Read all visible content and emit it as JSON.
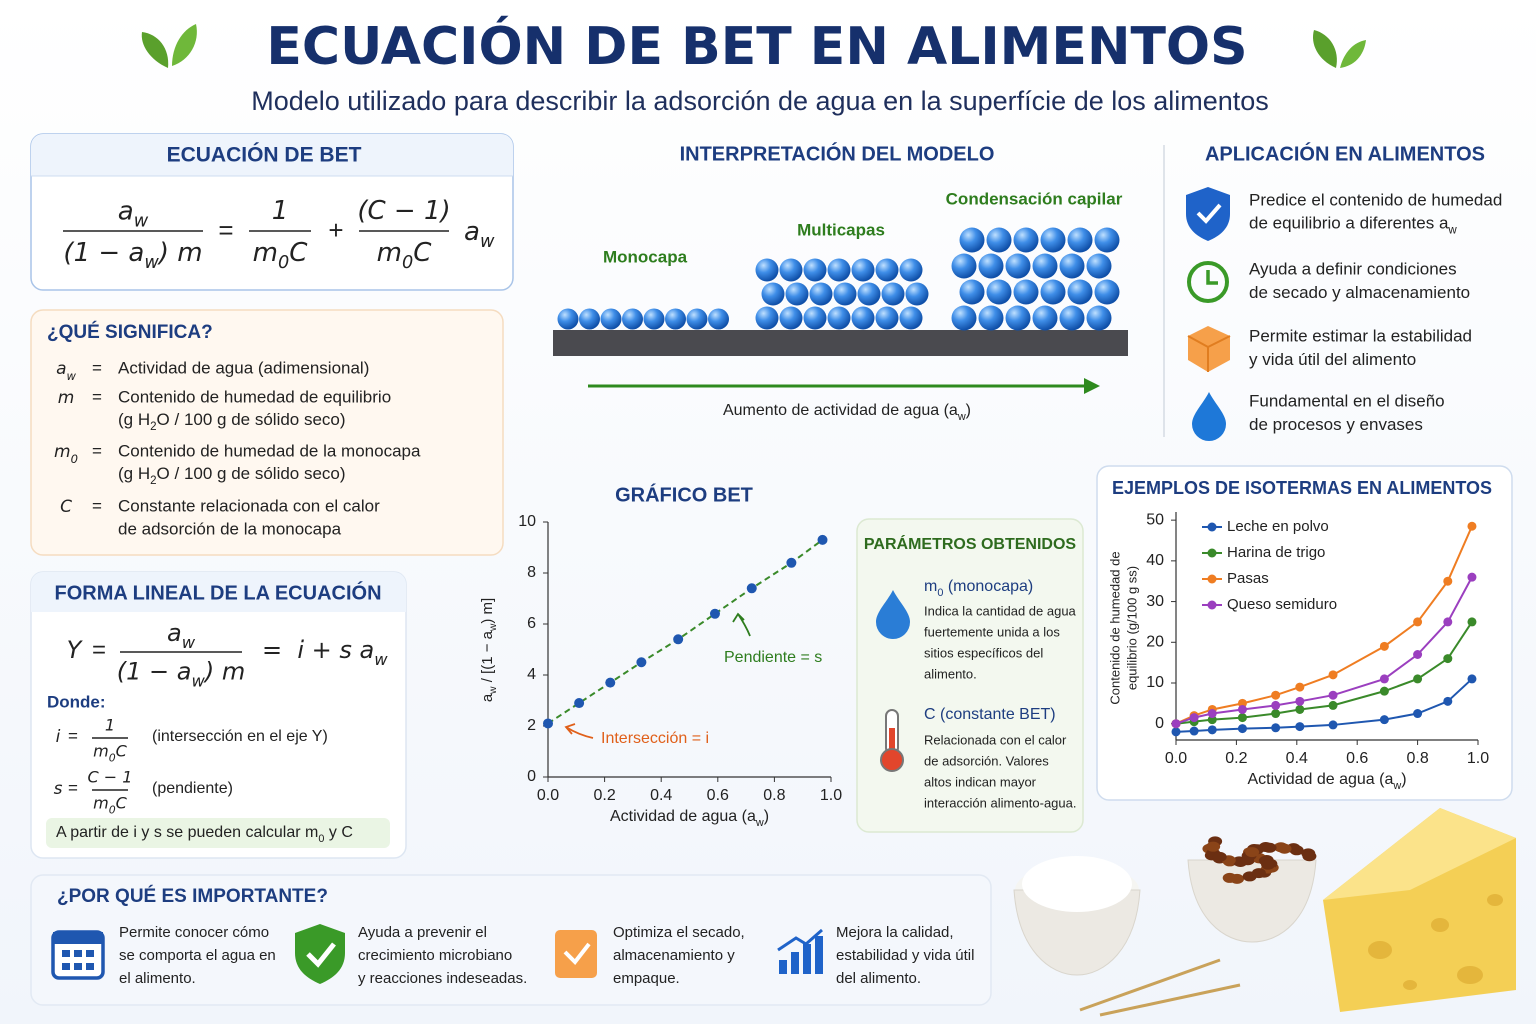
{
  "header": {
    "title": "ECUACIÓN DE BET EN ALIMENTOS",
    "subtitle": "Modelo utilizado para describir la adsorción de agua en la superfície de los alimentos"
  },
  "equation": {
    "title": "ECUACIÓN DE BET",
    "lhs_num": [
      "a",
      "w"
    ],
    "lhs_den": [
      "(1 − a",
      "w",
      ") m"
    ],
    "equals": "=",
    "t1_num": "1",
    "t1_den": [
      "m",
      "0",
      "C"
    ],
    "plus": "+",
    "t2_num": "(C − 1)",
    "t2_den": [
      "m",
      "0",
      "C"
    ],
    "factor": [
      "a",
      "w"
    ]
  },
  "meaning": {
    "title": "¿QUÉ SIGNIFICA?",
    "items": [
      {
        "symbol": [
          "a",
          "w"
        ],
        "equals": "=",
        "lines": [
          "Actividad de agua (adimensional)"
        ]
      },
      {
        "symbol": "m",
        "equals": "=",
        "lines": [
          "Contenido de humedad de equilibrio",
          [
            "(g H",
            "2",
            "O / 100 g de sólido seco)"
          ]
        ]
      },
      {
        "symbol": [
          "m",
          "0"
        ],
        "equals": "=",
        "lines": [
          "Contenido de humedad de la monocapa",
          [
            "(g H",
            "2",
            "O / 100 g de sólido seco)"
          ]
        ]
      },
      {
        "symbol": "C",
        "equals": "=",
        "lines": [
          "Constante relacionada con el calor",
          "de adsorción de la monocapa"
        ]
      }
    ]
  },
  "linear": {
    "title": "FORMA LINEAL DE LA ECUACIÓN",
    "lhs": "Y",
    "equals": "=",
    "num": [
      "a",
      "w"
    ],
    "den": [
      "(1 − a",
      "w",
      ") m"
    ],
    "rhs": [
      "=  i + s a",
      "w"
    ],
    "where": "Donde:",
    "defs": [
      {
        "symbol": "i",
        "equals": "=",
        "num": "1",
        "den": [
          "m",
          "0",
          "C"
        ],
        "note": "(intersección en el eje Y)"
      },
      {
        "symbol": "s",
        "equals": "=",
        "num": "C − 1",
        "den": [
          "m",
          "0",
          "C"
        ],
        "note": "(pendiente)"
      }
    ],
    "footer": [
      "A partir de i y s se pueden calcular m",
      "0",
      " y C"
    ]
  },
  "model": {
    "title": "INTERPRETACIÓN DEL MODELO",
    "stages": [
      "Monocapa",
      "Multicapas",
      "Condensación capilar"
    ],
    "axis": [
      "Aumento de actividad de agua (a",
      "w",
      ")"
    ]
  },
  "applications": {
    "title": "APLICACIÓN EN ALIMENTOS",
    "items": [
      [
        "Predice el contenido de humedad",
        [
          "de equilibrio a diferentes a",
          "w"
        ]
      ],
      [
        "Ayuda a definir condiciones",
        "de secado y almacenamiento"
      ],
      [
        "Permite estimar la estabilidad",
        "y vida útil del alimento"
      ],
      [
        "Fundamental en el diseño",
        "de procesos y envases"
      ]
    ]
  },
  "parameters": {
    "title": "PARÁMETROS OBTENIDOS",
    "items": [
      {
        "title": [
          "m",
          "0",
          " (monocapa)"
        ],
        "lines": [
          "Indica la cantidad de agua",
          "fuertemente unida a los",
          "sitios específicos del",
          "alimento."
        ]
      },
      {
        "title": "C (constante BET)",
        "lines": [
          "Relacionada con el calor",
          "de adsorción. Valores",
          "altos indican mayor",
          "interacción alimento-agua."
        ]
      }
    ]
  },
  "importance": {
    "title": "¿POR QUÉ ES IMPORTANTE?",
    "items": [
      [
        "Permite conocer cómo",
        "se comporta el agua en",
        "el alimento."
      ],
      [
        "Ayuda a prevenir el",
        "crecimiento microbiano",
        "y reacciones indeseadas."
      ],
      [
        "Optimiza el secado,",
        "almacenamiento y",
        "empaque."
      ],
      [
        "Mejora la calidad,",
        "estabilidad y vida útil",
        "del alimento."
      ]
    ]
  },
  "chart_data": [
    {
      "type": "line",
      "title": "GRÁFICO BET",
      "x_label": [
        "Actividad de agua (a",
        "w",
        ")"
      ],
      "y_label": [
        "a",
        "w",
        " / [(1 − a",
        "w",
        ") m]"
      ],
      "x": [
        0,
        0.11,
        0.22,
        0.33,
        0.46,
        0.59,
        0.72,
        0.86,
        0.97
      ],
      "values": [
        2.1,
        2.9,
        3.7,
        4.5,
        5.4,
        6.4,
        7.4,
        8.4,
        9.3
      ],
      "color": "#1f57b0",
      "line_color": "#3a8a2a",
      "line_style": "dashed",
      "grid": false,
      "xlim": [
        0,
        1
      ],
      "xticks": [
        {
          "value": 0,
          "label": "0.0"
        },
        {
          "value": 0.2,
          "label": "0.2"
        },
        {
          "value": 0.4,
          "label": "0.4"
        },
        {
          "value": 0.6,
          "label": "0.6"
        },
        {
          "value": 0.8,
          "label": "0.8"
        },
        {
          "value": 1,
          "label": "1.0"
        }
      ],
      "ylim": [
        0,
        10
      ],
      "yticks": [
        0,
        2,
        4,
        6,
        8,
        10
      ],
      "annotations": [
        "Pendiente = s",
        "Intersección = i"
      ]
    },
    {
      "type": "line",
      "title": "EJEMPLOS DE ISOTERMAS EN ALIMENTOS",
      "x_label": [
        "Actividad de agua (a",
        "w",
        ")"
      ],
      "y_label": [
        "Contenido de humedad de",
        "equilibrio (g/100 g ss)"
      ],
      "x": [
        0,
        0.06,
        0.12,
        0.22,
        0.33,
        0.41,
        0.52,
        0.69,
        0.8,
        0.9,
        0.98
      ],
      "series": [
        {
          "name": "Leche en polvo",
          "color": "#1f57b0",
          "values": [
            -2,
            -1.8,
            -1.5,
            -1.2,
            -1,
            -0.7,
            -0.3,
            1,
            2.5,
            5.5,
            11
          ]
        },
        {
          "name": "Harina de trigo",
          "color": "#3a8a2a",
          "values": [
            0,
            0.5,
            1,
            1.5,
            2.5,
            3.5,
            4.5,
            8,
            11,
            16,
            25
          ]
        },
        {
          "name": "Pasas",
          "color": "#ef7d22",
          "values": [
            0,
            2,
            3.5,
            5,
            7,
            9,
            12,
            19,
            25,
            35,
            48.5
          ]
        },
        {
          "name": "Queso semiduro",
          "color": "#9b3fbf",
          "values": [
            0,
            1.5,
            2.5,
            3.5,
            4.5,
            5.5,
            7,
            11,
            17,
            25,
            36
          ]
        }
      ],
      "legend": "upper left",
      "grid": false,
      "xlim": [
        0,
        1
      ],
      "xticks": [
        {
          "value": 0,
          "label": "0.0"
        },
        {
          "value": 0.2,
          "label": "0.2"
        },
        {
          "value": 0.4,
          "label": "0.4"
        },
        {
          "value": 0.6,
          "label": "0.6"
        },
        {
          "value": 0.8,
          "label": "0.8"
        },
        {
          "value": 1,
          "label": "1.0"
        }
      ],
      "ylim": [
        -4,
        52
      ],
      "yticks": [
        0,
        10,
        20,
        30,
        40,
        50
      ]
    }
  ]
}
